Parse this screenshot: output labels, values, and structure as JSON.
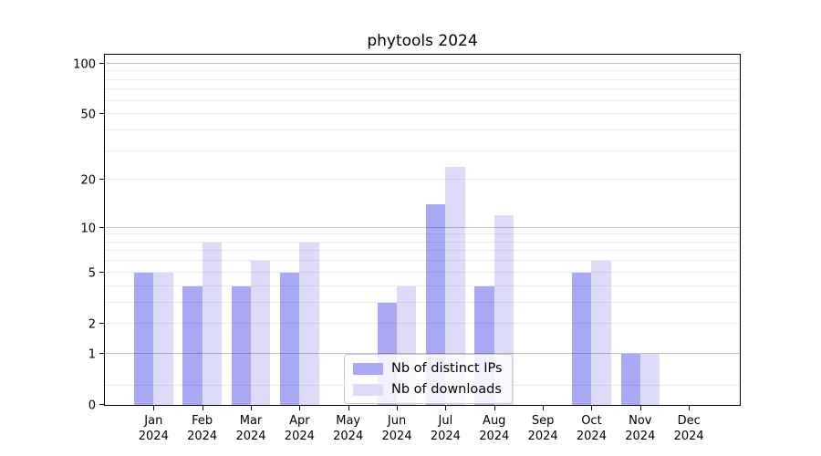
{
  "title": "phytools 2024",
  "legend": {
    "entries": [
      {
        "label": "Nb of distinct IPs",
        "color": "#a9a9f6"
      },
      {
        "label": "Nb of downloads",
        "color": "#dcdcf9"
      }
    ],
    "position": "lower center"
  },
  "y_axis": {
    "scale": "log1p",
    "tick_labels": [
      "0",
      "1",
      "2",
      "5",
      "10",
      "20",
      "50",
      "100"
    ],
    "tick_values": [
      0,
      1,
      2,
      5,
      10,
      20,
      50,
      100
    ],
    "max_value": 113,
    "major_gridlines": [
      1,
      10,
      100
    ],
    "minor_gridlines": [
      0.3,
      2,
      3,
      4,
      5,
      6,
      7,
      8,
      9,
      20,
      30,
      40,
      50,
      60,
      70,
      80,
      90
    ]
  },
  "x_axis": {
    "year": "2024",
    "months": [
      "Jan",
      "Feb",
      "Mar",
      "Apr",
      "May",
      "Jun",
      "Jul",
      "Aug",
      "Sep",
      "Oct",
      "Nov",
      "Dec"
    ]
  },
  "chart_data": {
    "type": "bar",
    "title": "phytools 2024",
    "categories": [
      "Jan 2024",
      "Feb 2024",
      "Mar 2024",
      "Apr 2024",
      "May 2024",
      "Jun 2024",
      "Jul 2024",
      "Aug 2024",
      "Sep 2024",
      "Oct 2024",
      "Nov 2024",
      "Dec 2024"
    ],
    "series": [
      {
        "name": "Nb of distinct IPs",
        "color": "#a9a9f6",
        "values": [
          5,
          4,
          4,
          5,
          0,
          3,
          14,
          4,
          0,
          5,
          1,
          0
        ]
      },
      {
        "name": "Nb of downloads",
        "color": "#dcdcf9",
        "values": [
          5,
          8,
          6,
          8,
          0,
          4,
          24,
          12,
          0,
          6,
          1,
          0
        ]
      }
    ],
    "xlabel": "",
    "ylabel": "",
    "y_scale": "log1p",
    "y_ticks": [
      0,
      1,
      2,
      5,
      10,
      20,
      50,
      100
    ],
    "ylim": [
      0,
      113
    ],
    "grid": true,
    "legend_position": "lower center",
    "colors": {
      "grid_minor": "#ececec",
      "grid_major": "#c3c3c3",
      "axis": "#000000",
      "background": "#ffffff"
    }
  }
}
